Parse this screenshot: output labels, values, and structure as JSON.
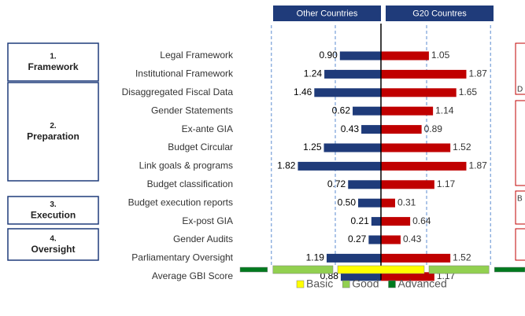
{
  "chart_data": {
    "type": "diverging_bar",
    "categories": [
      "Legal Framework",
      "Institutional Framework",
      "Disaggregated Fiscal Data",
      "Gender Statements",
      "Ex-ante GIA",
      "Budget Circular",
      "Link goals & programs",
      "Budget classification",
      "Budget execution reports",
      "Ex-post GIA",
      "Gender Audits",
      "Parliamentary Oversight",
      "Average GBI Score"
    ],
    "series": [
      {
        "name": "Other Countries",
        "color": "#1f3b7a",
        "values": [
          0.9,
          1.24,
          1.46,
          0.62,
          0.43,
          1.25,
          1.82,
          0.72,
          0.5,
          0.21,
          0.27,
          1.19,
          0.88
        ],
        "value_labels": [
          "0.90",
          "1.24",
          "1.46",
          "0.62",
          "0.43",
          "1.25",
          "1.82",
          "0.72",
          "0.50",
          "0.21",
          "0.27",
          "1.19",
          "0.88"
        ]
      },
      {
        "name": "G20 Countres",
        "color": "#c00000",
        "values": [
          1.05,
          1.87,
          1.65,
          1.14,
          0.89,
          1.52,
          1.87,
          1.17,
          0.31,
          0.64,
          0.43,
          1.52,
          1.17
        ],
        "value_labels": [
          "1.05",
          "1.87",
          "1.65",
          "1.14",
          "0.89",
          "1.52",
          "1.87",
          "1.17",
          "0.31",
          "0.64",
          "0.43",
          "1.52",
          "1.17"
        ]
      }
    ],
    "thresholds": [
      1,
      2.4
    ],
    "groups": [
      {
        "number": "1.",
        "label": "Framework"
      },
      {
        "number": "2.",
        "label": "Preparation"
      },
      {
        "number": "3.",
        "label": "Execution"
      },
      {
        "number": "4.",
        "label": "Oversight"
      }
    ],
    "levels": [
      {
        "name": "Basic",
        "color": "#ffff00"
      },
      {
        "name": "Good",
        "color": "#92d050"
      },
      {
        "name": "Advanced",
        "color": "#007a1e"
      }
    ],
    "side_notes": [
      "D",
      "B"
    ]
  }
}
